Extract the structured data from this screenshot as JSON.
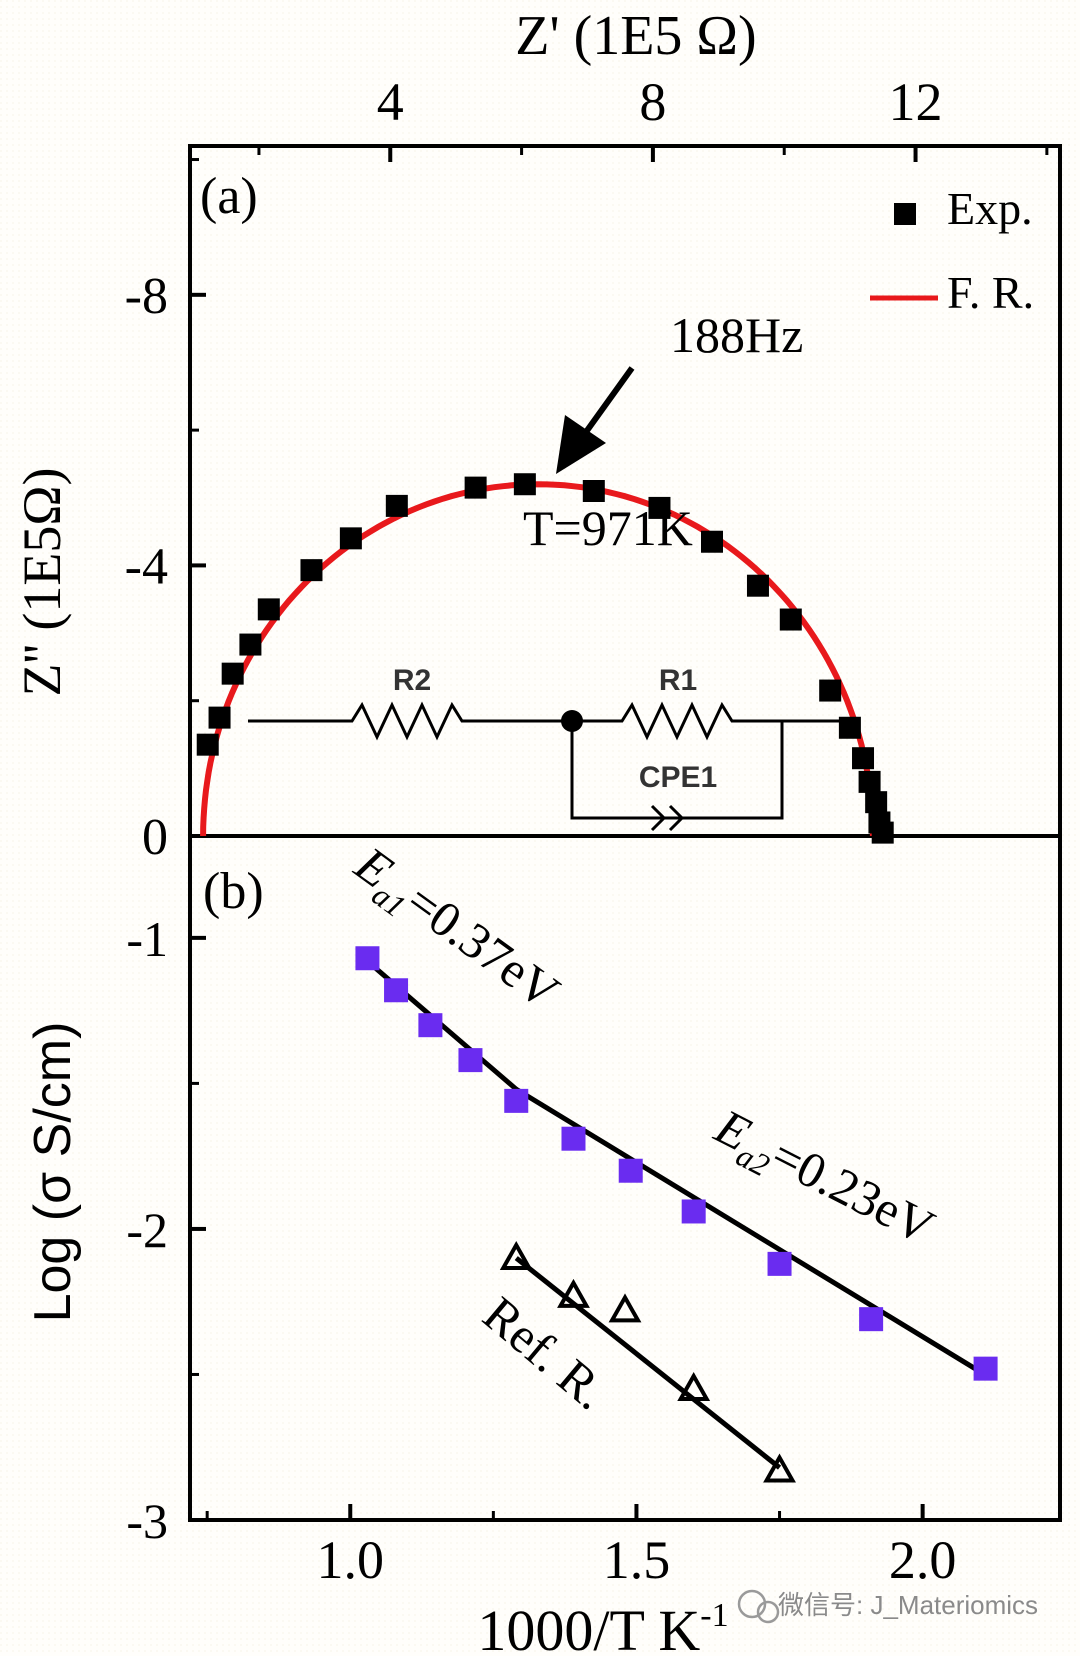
{
  "watermark": "微信号: J_Materiomics",
  "chart_data": [
    {
      "panel": "(a)",
      "type": "scatter",
      "xlabel": "Z' (1E5 Ω)",
      "ylabel": "Z'' (1E5Ω)",
      "xlim": [
        0.95,
        14.2
      ],
      "ylim": [
        0,
        -10.2
      ],
      "x_ticks": [
        4,
        8,
        12
      ],
      "y_ticks": [
        0,
        -4,
        -8
      ],
      "y_tick_labels": [
        "0",
        "-4",
        "-8"
      ],
      "legend": {
        "placement": "top-right",
        "entries": [
          {
            "label": "Exp.",
            "marker": "square",
            "color": "#000000"
          },
          {
            "label": "F. R.",
            "marker": "line",
            "color": "#e8191c"
          }
        ]
      },
      "annotations": {
        "frequency": "188Hz",
        "temperature": "T=971K"
      },
      "circuit": {
        "r2": "R2",
        "r1": "R1",
        "cpe": "CPE1"
      },
      "series": [
        {
          "name": "Exp.",
          "points": [
            [
              1.22,
              -1.35
            ],
            [
              1.4,
              -1.75
            ],
            [
              1.6,
              -2.4
            ],
            [
              1.87,
              -2.83
            ],
            [
              2.15,
              -3.35
            ],
            [
              2.8,
              -3.93
            ],
            [
              3.4,
              -4.4
            ],
            [
              4.1,
              -4.88
            ],
            [
              5.3,
              -5.15
            ],
            [
              6.05,
              -5.2
            ],
            [
              7.1,
              -5.1
            ],
            [
              8.1,
              -4.85
            ],
            [
              8.9,
              -4.35
            ],
            [
              9.6,
              -3.7
            ],
            [
              10.1,
              -3.2
            ],
            [
              10.7,
              -2.15
            ],
            [
              11.0,
              -1.6
            ],
            [
              11.2,
              -1.15
            ],
            [
              11.3,
              -0.8
            ],
            [
              11.4,
              -0.5
            ],
            [
              11.45,
              -0.2
            ],
            [
              11.5,
              -0.05
            ]
          ]
        },
        {
          "name": "F. R.",
          "type": "semicircle",
          "center": [
            6.25,
            0
          ],
          "radius": 5.1,
          "depth": 5.2
        }
      ]
    },
    {
      "panel": "(b)",
      "type": "scatter",
      "xlabel": "1000/T K",
      "xlabel_superscript": "-1",
      "ylabel": "Log (σ S/cm)",
      "xlim": [
        0.72,
        2.24
      ],
      "ylim": [
        -3,
        -0.65
      ],
      "x_ticks": [
        1.0,
        1.5,
        2.0
      ],
      "x_tick_labels": [
        "1.0",
        "1.5",
        "2.0"
      ],
      "y_ticks": [
        -1,
        -2,
        -3
      ],
      "y_tick_labels": [
        "-1",
        "-2",
        "-3"
      ],
      "annotations": {
        "ea1": {
          "symbol": "E",
          "subscript": "a1",
          "value": "=0.37eV"
        },
        "ea2": {
          "symbol": "E",
          "subscript": "a2",
          "value": "=0.23eV"
        },
        "ref": "Ref. R."
      },
      "series": [
        {
          "name": "",
          "marker": "square",
          "color": "#6a2cf0",
          "points": [
            [
              1.03,
              -1.07
            ],
            [
              1.08,
              -1.18
            ],
            [
              1.14,
              -1.3
            ],
            [
              1.21,
              -1.42
            ],
            [
              1.29,
              -1.56
            ],
            [
              1.39,
              -1.69
            ],
            [
              1.49,
              -1.8
            ],
            [
              1.6,
              -1.94
            ],
            [
              1.75,
              -2.12
            ],
            [
              1.91,
              -2.31
            ],
            [
              2.11,
              -2.48
            ]
          ],
          "fit_lines": [
            {
              "from": [
                1.03,
                -1.08
              ],
              "to": [
                1.29,
                -1.52
              ]
            },
            {
              "from": [
                1.29,
                -1.52
              ],
              "to": [
                2.1,
                -2.49
              ]
            }
          ]
        },
        {
          "name": "Ref. R.",
          "marker": "triangle",
          "color": "#000000",
          "points": [
            [
              1.29,
              -2.1
            ],
            [
              1.39,
              -2.23
            ],
            [
              1.48,
              -2.28
            ],
            [
              1.6,
              -2.55
            ],
            [
              1.75,
              -2.83
            ]
          ],
          "fit_lines": [
            {
              "from": [
                1.29,
                -2.1
              ],
              "to": [
                1.75,
                -2.82
              ]
            }
          ]
        }
      ]
    }
  ]
}
